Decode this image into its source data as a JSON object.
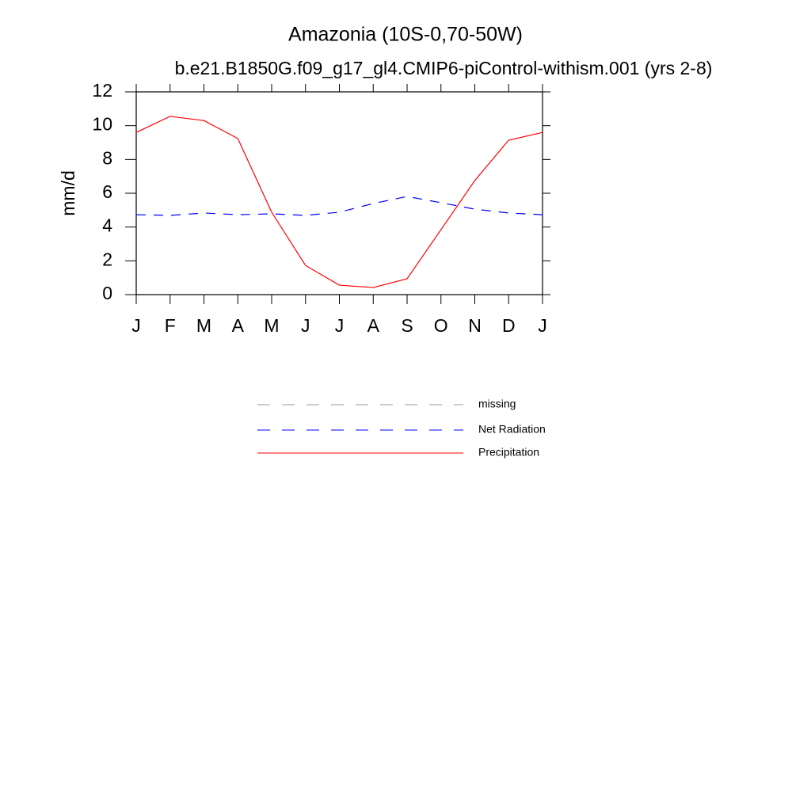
{
  "chart_data": {
    "type": "line",
    "title": "Amazonia (10S-0,70-50W)",
    "subtitle": "b.e21.B1850G.f09_g17_gl4.CMIP6-piControl-withism.001 (yrs 2-8)",
    "y_label": "mm/d",
    "categories": [
      "J",
      "F",
      "M",
      "A",
      "M",
      "J",
      "J",
      "A",
      "S",
      "O",
      "N",
      "D",
      "J"
    ],
    "series": [
      {
        "name": "missing",
        "color": "#999999",
        "dash": true,
        "values": [
          null,
          null,
          null,
          null,
          null,
          null,
          null,
          null,
          null,
          null,
          null,
          null,
          null
        ]
      },
      {
        "name": "Net Radiation",
        "color": "#0000ff",
        "dash": true,
        "values": [
          4.73,
          4.69,
          4.83,
          4.73,
          4.78,
          4.69,
          4.88,
          5.39,
          5.81,
          5.44,
          5.06,
          4.83,
          4.73
        ]
      },
      {
        "name": "Precipitation",
        "color": "#ff0000",
        "dash": false,
        "values": [
          9.6,
          10.55,
          10.3,
          9.24,
          4.88,
          1.73,
          0.56,
          0.42,
          0.94,
          3.84,
          6.75,
          9.14,
          9.6
        ]
      }
    ],
    "ylim": [
      0,
      12
    ],
    "yticks": [
      0,
      2,
      4,
      6,
      8,
      10,
      12
    ],
    "grid": false
  }
}
